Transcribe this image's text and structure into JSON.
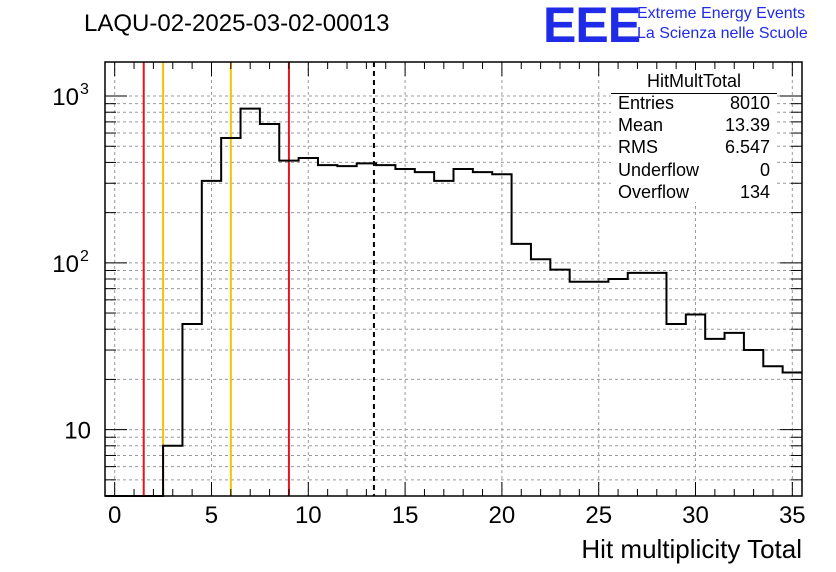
{
  "title": "LAQU-02-2025-03-02-00013",
  "logo": {
    "text": "EEE",
    "line1": "Extreme Energy Events",
    "line2": "La Scienza nelle Scuole",
    "color": "#1f2be6"
  },
  "stats": {
    "title": "HitMultTotal",
    "rows": [
      {
        "label": "Entries",
        "value": "8010"
      },
      {
        "label": "Mean",
        "value": "13.39"
      },
      {
        "label": "RMS",
        "value": "6.547"
      },
      {
        "label": "Underflow",
        "value": "0"
      },
      {
        "label": "Overflow",
        "value": "134"
      }
    ]
  },
  "chart_data": {
    "type": "histogram",
    "title": "LAQU-02-2025-03-02-00013",
    "xlabel": "Hit multiplicity Total",
    "ylabel": "",
    "xlim": [
      -0.5,
      35.5
    ],
    "ylim": [
      4,
      1600
    ],
    "yscale": "log",
    "grid": true,
    "x_ticks": [
      0,
      5,
      10,
      15,
      20,
      25,
      30,
      35
    ],
    "y_tick_labels": [
      {
        "value": 10,
        "label": "10"
      },
      {
        "value": 100,
        "label": "10",
        "exp": "2"
      },
      {
        "value": 1000,
        "label": "10",
        "exp": "3"
      }
    ],
    "bin_edges": [
      -0.5,
      0.5,
      1.5,
      2.5,
      3.5,
      4.5,
      5.5,
      6.5,
      7.5,
      8.5,
      9.5,
      10.5,
      11.5,
      12.5,
      13.5,
      14.5,
      15.5,
      16.5,
      17.5,
      18.5,
      19.5,
      20.5,
      21.5,
      22.5,
      23.5,
      24.5,
      25.5,
      26.5,
      27.5,
      28.5,
      29.5,
      30.5,
      31.5,
      32.5,
      33.5,
      34.5,
      35.5
    ],
    "counts": [
      0,
      0,
      0,
      8,
      43,
      310,
      560,
      840,
      680,
      410,
      425,
      385,
      380,
      395,
      385,
      365,
      350,
      310,
      365,
      350,
      340,
      130,
      105,
      91,
      77,
      77,
      80,
      87,
      87,
      43,
      49,
      35,
      38,
      30,
      24,
      22
    ],
    "vertical_lines": [
      {
        "x": 1.5,
        "color": "#e8141b",
        "style": "solid"
      },
      {
        "x": 2.5,
        "color": "#f2c400",
        "style": "solid"
      },
      {
        "x": 6.0,
        "color": "#f2c400",
        "style": "solid"
      },
      {
        "x": 9.0,
        "color": "#e8141b",
        "style": "solid"
      },
      {
        "x": 13.39,
        "color": "#000000",
        "style": "dashed"
      }
    ]
  }
}
